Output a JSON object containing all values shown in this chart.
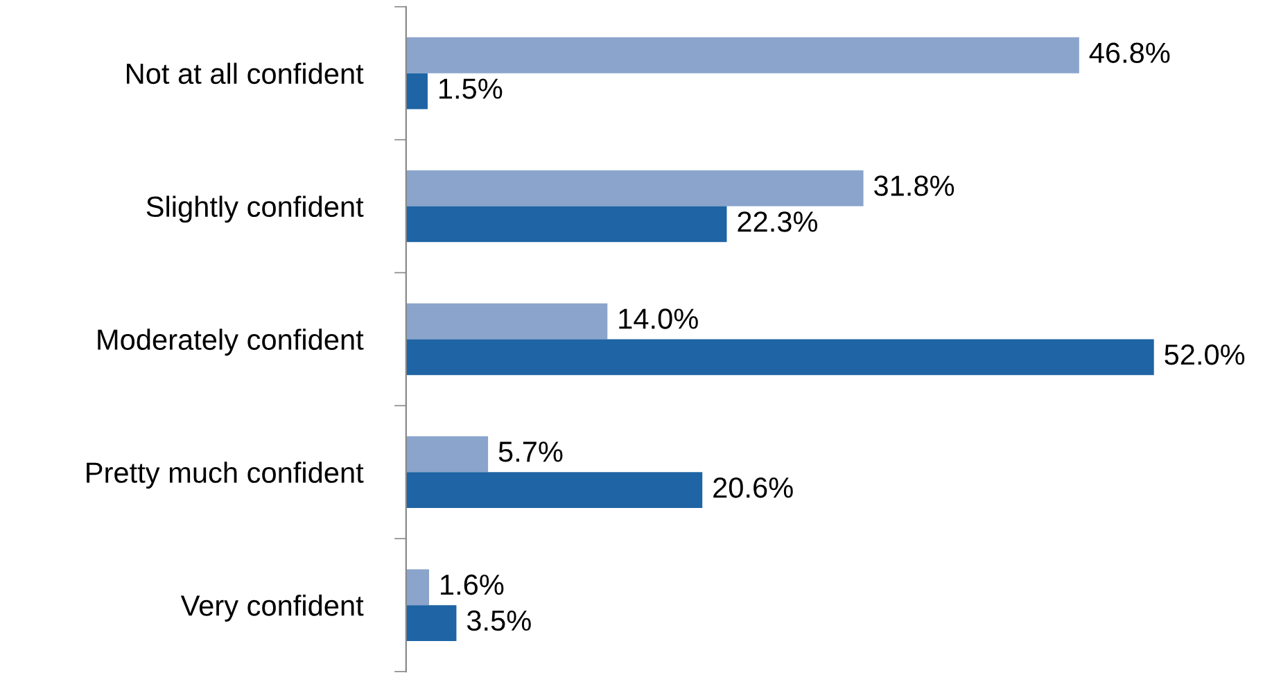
{
  "chart_data": {
    "type": "bar",
    "orientation": "horizontal",
    "categories": [
      "Not at all confident",
      "Slightly confident",
      "Moderately confident",
      "Pretty much confident",
      "Very confident"
    ],
    "series": [
      {
        "color": "#8aa4cc",
        "values": [
          46.8,
          31.8,
          14.0,
          5.7,
          1.6
        ],
        "value_labels": [
          "46.8%",
          "31.8%",
          "14.0%",
          "5.7%",
          "1.6%"
        ]
      },
      {
        "color": "#1f64a4",
        "values": [
          1.5,
          22.3,
          52.0,
          20.6,
          3.5
        ],
        "value_labels": [
          "1.5%",
          "22.3%",
          "52.0%",
          "20.6%",
          "3.5%"
        ]
      }
    ],
    "grid": false,
    "legend": false
  }
}
